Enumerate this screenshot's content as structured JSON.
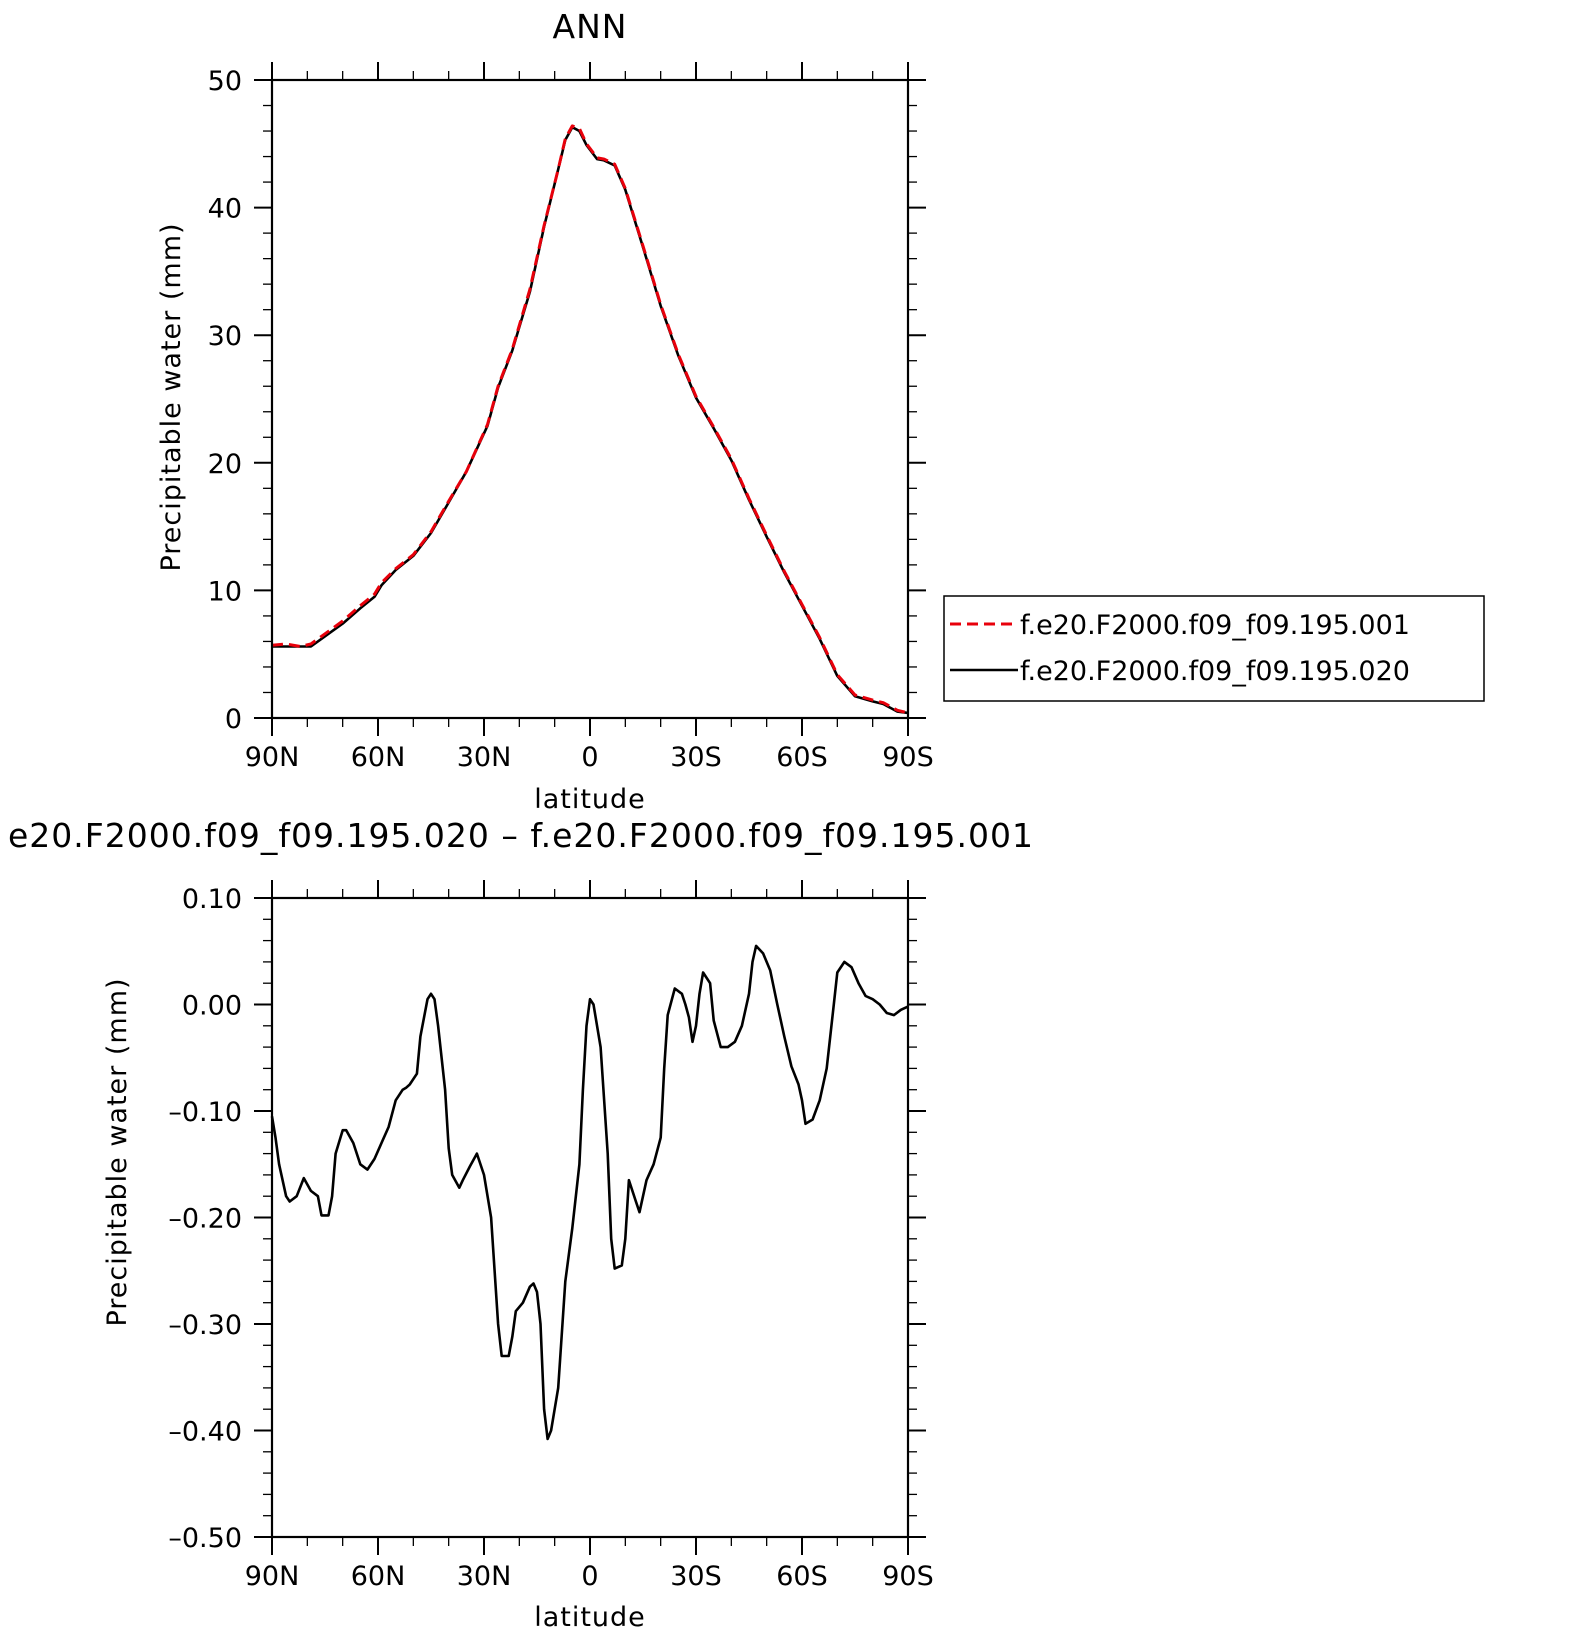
{
  "colors": {
    "run1": "#e8000b",
    "run2": "#000000",
    "axis": "#000000",
    "background": "#ffffff"
  },
  "chart_data": [
    {
      "type": "line",
      "title": "ANN",
      "xlabel": "latitude",
      "ylabel": "Precipitable water (mm)",
      "xlim": [
        90,
        -90
      ],
      "ylim": [
        0,
        50
      ],
      "xticks": [
        90,
        60,
        30,
        0,
        -30,
        -60,
        -90
      ],
      "xtick_labels": [
        "90N",
        "60N",
        "30N",
        "0",
        "30S",
        "60S",
        "90S"
      ],
      "yticks": [
        0,
        10,
        20,
        30,
        40,
        50
      ],
      "ytick_labels": [
        "0",
        "10",
        "20",
        "30",
        "40",
        "50"
      ],
      "grid": false,
      "legend": {
        "position": "right",
        "entries": [
          "f.e20.F2000.f09_f09.195.001",
          "f.e20.F2000.f09_f09.195.020"
        ]
      },
      "series": [
        {
          "name": "f.e20.F2000.f09_f09.195.001",
          "style": "dashed",
          "color_key": "run1",
          "x": [
            90,
            86,
            82,
            79,
            75,
            70,
            65,
            61,
            59,
            55,
            50,
            45,
            40,
            35,
            29,
            26,
            22,
            17,
            13,
            9,
            7,
            5,
            3,
            1,
            -2,
            -4,
            -7,
            -10,
            -15,
            -20,
            -25,
            -30,
            -35,
            -40,
            -45,
            -50,
            -55,
            -60,
            -65,
            -70,
            -75,
            -80,
            -83,
            -87,
            -90
          ],
          "values": [
            5.7,
            5.8,
            5.6,
            5.8,
            6.6,
            7.6,
            8.8,
            9.7,
            10.6,
            11.7,
            12.8,
            14.6,
            17.0,
            19.3,
            23.0,
            26.0,
            28.9,
            33.6,
            38.6,
            43.0,
            45.4,
            46.4,
            46.2,
            45.0,
            43.9,
            43.8,
            43.4,
            41.5,
            37.0,
            32.4,
            28.5,
            25.2,
            22.8,
            20.3,
            17.2,
            14.3,
            11.5,
            8.9,
            6.3,
            3.4,
            1.8,
            1.4,
            1.2,
            0.6,
            0.4
          ]
        },
        {
          "name": "f.e20.F2000.f09_f09.195.020",
          "style": "solid",
          "color_key": "run2",
          "x": [
            90,
            86,
            82,
            79,
            75,
            70,
            65,
            61,
            59,
            55,
            50,
            45,
            40,
            35,
            29,
            26,
            22,
            17,
            13,
            9,
            7,
            5,
            3,
            1,
            -2,
            -4,
            -7,
            -10,
            -15,
            -20,
            -25,
            -30,
            -35,
            -40,
            -45,
            -50,
            -55,
            -60,
            -65,
            -70,
            -75,
            -80,
            -83,
            -87,
            -90
          ],
          "values": [
            5.6,
            5.6,
            5.6,
            5.6,
            6.4,
            7.4,
            8.6,
            9.5,
            10.4,
            11.6,
            12.7,
            14.5,
            16.9,
            19.3,
            22.9,
            25.9,
            28.8,
            33.4,
            38.5,
            43.0,
            45.3,
            46.3,
            46.0,
            44.9,
            43.8,
            43.7,
            43.3,
            41.4,
            36.9,
            32.3,
            28.4,
            25.1,
            22.7,
            20.2,
            17.1,
            14.2,
            11.4,
            8.8,
            6.2,
            3.3,
            1.7,
            1.3,
            1.1,
            0.5,
            0.4
          ]
        }
      ]
    },
    {
      "type": "line",
      "title": "e20.F2000.f09_f09.195.020 – f.e20.F2000.f09_f09.195.001",
      "xlabel": "latitude",
      "ylabel": "Precipitable water (mm)",
      "xlim": [
        90,
        -90
      ],
      "ylim": [
        -0.5,
        0.1
      ],
      "xticks": [
        90,
        60,
        30,
        0,
        -30,
        -60,
        -90
      ],
      "xtick_labels": [
        "90N",
        "60N",
        "30N",
        "0",
        "30S",
        "60S",
        "90S"
      ],
      "yticks": [
        0.1,
        0,
        -0.1,
        -0.2,
        -0.3,
        -0.4,
        -0.5
      ],
      "ytick_labels": [
        "0.10",
        "0.00",
        "–0.10",
        "–0.20",
        "–0.30",
        "–0.40",
        "–0.50"
      ],
      "grid": false,
      "series": [
        {
          "style": "solid",
          "color_key": "run2",
          "x": [
            90,
            89,
            88,
            86,
            85,
            83,
            81,
            79,
            77,
            76,
            74,
            73,
            72,
            70,
            69,
            67,
            65,
            63,
            61,
            59,
            57,
            55,
            53,
            52,
            51,
            49,
            48,
            46,
            45,
            44,
            43,
            41,
            40,
            39,
            37,
            36,
            34,
            32,
            30,
            28,
            27,
            26,
            25,
            23,
            22,
            21,
            19,
            17,
            16,
            15,
            14,
            13,
            12,
            11,
            9,
            7,
            5,
            3,
            2,
            1,
            0,
            -1,
            -3,
            -5,
            -6,
            -7,
            -9,
            -10,
            -11,
            -13,
            -14,
            -16,
            -18,
            -20,
            -21,
            -22,
            -24,
            -26,
            -27,
            -28,
            -29,
            -30,
            -31,
            -32,
            -34,
            -35,
            -37,
            -39,
            -41,
            -43,
            -45,
            -46,
            -47,
            -49,
            -51,
            -53,
            -55,
            -57,
            -59,
            -60,
            -61,
            -63,
            -65,
            -67,
            -69,
            -70,
            -72,
            -74,
            -76,
            -78,
            -80,
            -82,
            -84,
            -86,
            -88,
            -90
          ],
          "values": [
            -0.105,
            -0.125,
            -0.15,
            -0.18,
            -0.185,
            -0.18,
            -0.163,
            -0.175,
            -0.18,
            -0.198,
            -0.198,
            -0.18,
            -0.14,
            -0.118,
            -0.118,
            -0.13,
            -0.15,
            -0.155,
            -0.145,
            -0.13,
            -0.115,
            -0.09,
            -0.08,
            -0.078,
            -0.075,
            -0.065,
            -0.03,
            0.005,
            0.01,
            0.005,
            -0.02,
            -0.08,
            -0.135,
            -0.16,
            -0.172,
            -0.165,
            -0.152,
            -0.14,
            -0.16,
            -0.2,
            -0.25,
            -0.3,
            -0.33,
            -0.33,
            -0.312,
            -0.288,
            -0.28,
            -0.265,
            -0.262,
            -0.27,
            -0.3,
            -0.38,
            -0.408,
            -0.4,
            -0.36,
            -0.26,
            -0.21,
            -0.15,
            -0.08,
            -0.02,
            0.005,
            0.0,
            -0.04,
            -0.14,
            -0.22,
            -0.248,
            -0.245,
            -0.22,
            -0.165,
            -0.185,
            -0.195,
            -0.165,
            -0.15,
            -0.125,
            -0.06,
            -0.01,
            0.015,
            0.01,
            0.0,
            -0.012,
            -0.035,
            -0.02,
            0.01,
            0.03,
            0.02,
            -0.015,
            -0.04,
            -0.04,
            -0.035,
            -0.02,
            0.01,
            0.04,
            0.055,
            0.048,
            0.032,
            0.0,
            -0.03,
            -0.058,
            -0.075,
            -0.09,
            -0.112,
            -0.108,
            -0.09,
            -0.06,
            0.0,
            0.03,
            0.04,
            0.035,
            0.02,
            0.008,
            0.005,
            0.0,
            -0.008,
            -0.01,
            -0.005,
            -0.002
          ]
        }
      ]
    }
  ]
}
